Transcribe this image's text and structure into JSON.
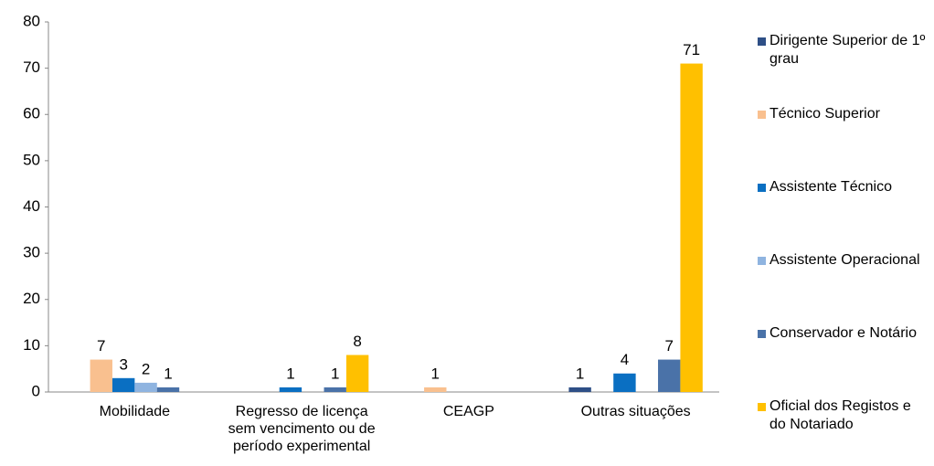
{
  "chart_data": {
    "type": "bar",
    "categories": [
      "Mobilidade",
      "Regresso de licença sem vencimento ou de período experimental",
      "CEAGP",
      "Outras situações"
    ],
    "series": [
      {
        "name": "Dirigente Superior de 1º grau",
        "color": "#2e4f86",
        "values": [
          null,
          null,
          null,
          1
        ]
      },
      {
        "name": "Técnico Superior",
        "color": "#f9c08f",
        "values": [
          7,
          null,
          1,
          null
        ]
      },
      {
        "name": "Assistente Técnico",
        "color": "#0a6fc2",
        "values": [
          3,
          1,
          null,
          4
        ]
      },
      {
        "name": "Assistente Operacional",
        "color": "#8fb4e0",
        "values": [
          2,
          null,
          null,
          null
        ]
      },
      {
        "name": "Conservador e Notário",
        "color": "#4a72a8",
        "values": [
          1,
          1,
          null,
          7
        ]
      },
      {
        "name": "Oficial dos Registos e do Notariado",
        "color": "#ffc000",
        "values": [
          null,
          8,
          null,
          71
        ]
      }
    ],
    "ylim": [
      0,
      80
    ],
    "yticks": [
      0,
      10,
      20,
      30,
      40,
      50,
      60,
      70,
      80
    ],
    "grid": false,
    "legend": "right"
  }
}
